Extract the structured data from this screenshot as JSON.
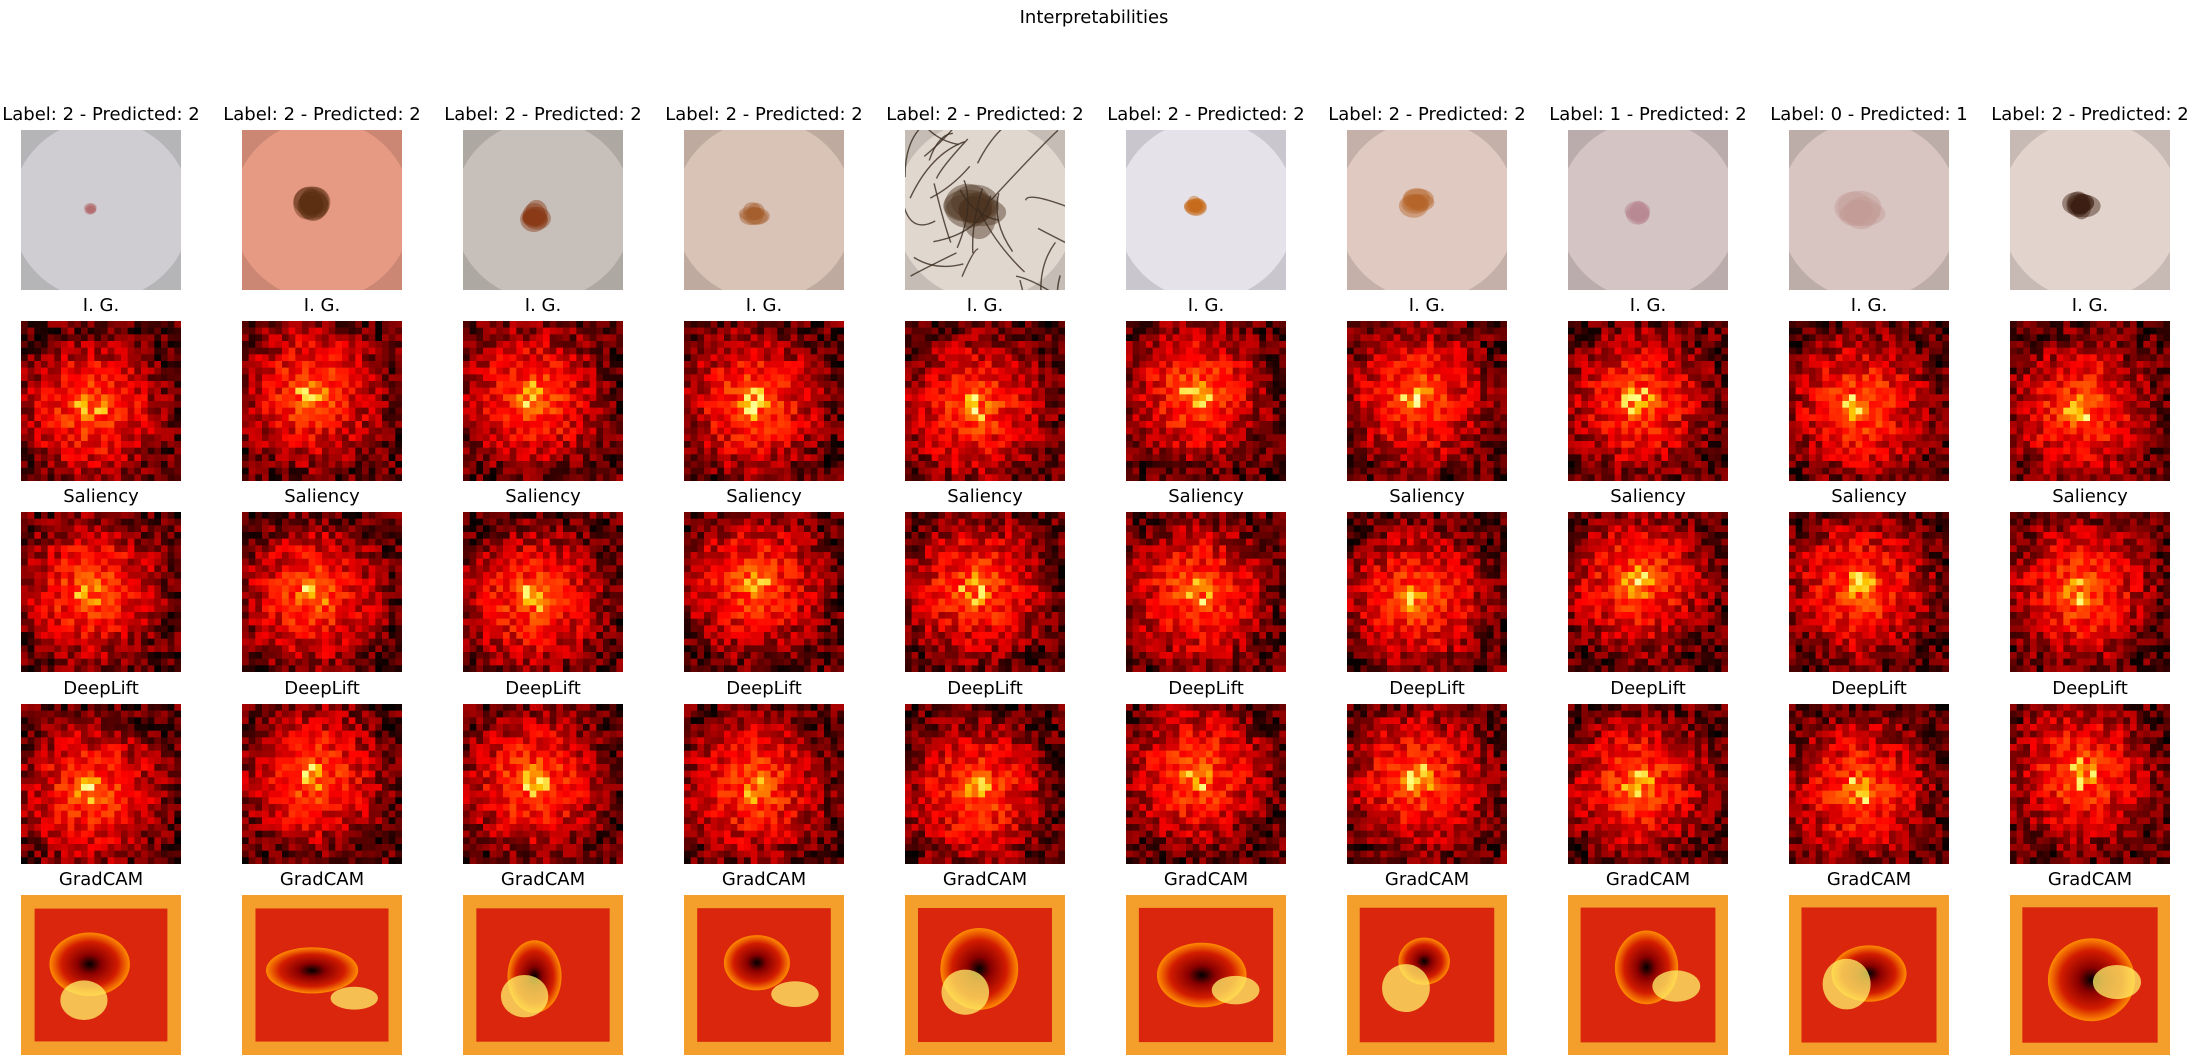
{
  "figure": {
    "title": "Interpretabilities"
  },
  "rows": [
    {
      "kind": "original",
      "name": "input"
    },
    {
      "kind": "heatmap",
      "name": "ig",
      "label": "I. G."
    },
    {
      "kind": "heatmap",
      "name": "saliency",
      "label": "Saliency"
    },
    {
      "kind": "heatmap",
      "name": "deeplift",
      "label": "DeepLift"
    },
    {
      "kind": "gradcam",
      "name": "gradcam",
      "label": "GradCAM"
    }
  ],
  "samples": [
    {
      "title": "Label: 2 - Predicted: 2",
      "skin": "#cfcdd1",
      "lesion": "#b36f70",
      "lesion_size": 0.09,
      "hair": false
    },
    {
      "title": "Label: 2 - Predicted: 2",
      "skin": "#e79a83",
      "lesion": "#5c2e12",
      "lesion_size": 0.26,
      "hair": false
    },
    {
      "title": "Label: 2 - Predicted: 2",
      "skin": "#c7c0ba",
      "lesion": "#8a3a16",
      "lesion_size": 0.22,
      "hair": false
    },
    {
      "title": "Label: 2 - Predicted: 2",
      "skin": "#d9c2b6",
      "lesion": "#a55f2e",
      "lesion_size": 0.18,
      "hair": false
    },
    {
      "title": "Label: 2 - Predicted: 2",
      "skin": "#e0d7cf",
      "lesion": "#4e3522",
      "lesion_size": 0.38,
      "hair": true
    },
    {
      "title": "Label: 2 - Predicted: 2",
      "skin": "#e6e2ea",
      "lesion": "#c56b1b",
      "lesion_size": 0.15,
      "hair": false
    },
    {
      "title": "Label: 2 - Predicted: 2",
      "skin": "#e0c9c1",
      "lesion": "#b5652a",
      "lesion_size": 0.2,
      "hair": false
    },
    {
      "title": "Label: 1 - Predicted: 2",
      "skin": "#d4c4c4",
      "lesion": "#b88893",
      "lesion_size": 0.18,
      "hair": false
    },
    {
      "title": "Label: 0 - Predicted: 1",
      "skin": "#d8c5c1",
      "lesion": "#c39b97",
      "lesion_size": 0.3,
      "hair": false
    },
    {
      "title": "Label: 2 - Predicted: 2",
      "skin": "#e3d3cd",
      "lesion": "#3c1f12",
      "lesion_size": 0.22,
      "hair": false
    }
  ]
}
